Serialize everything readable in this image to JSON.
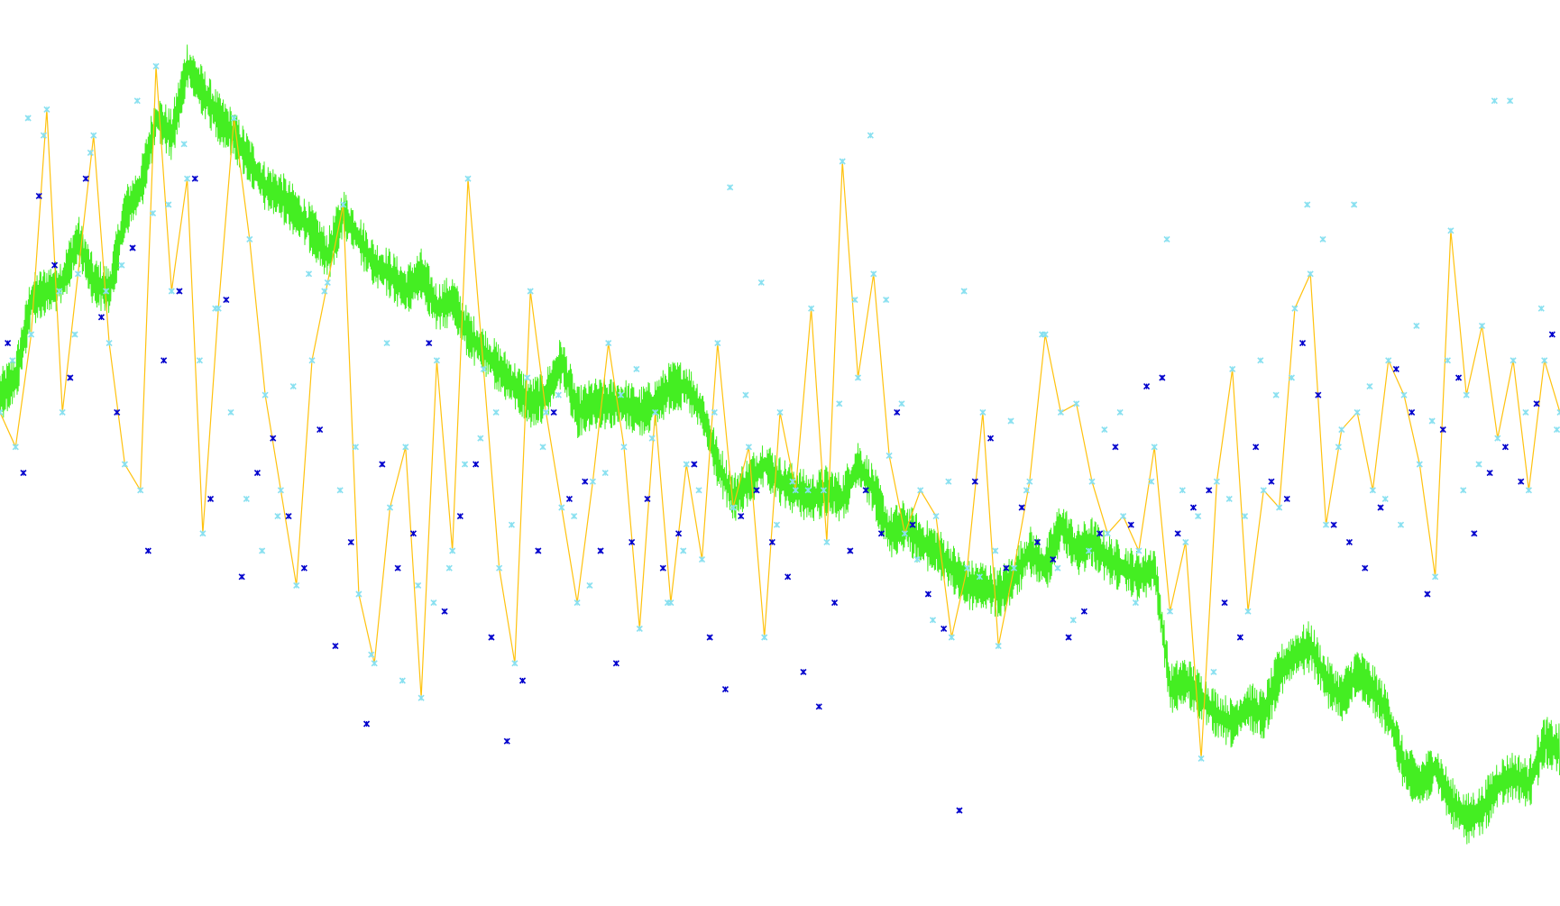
{
  "chart_data": {
    "type": "line",
    "title": "",
    "xlabel": "",
    "ylabel": "",
    "xlim": [
      0,
      1000
    ],
    "ylim": [
      0,
      1000
    ],
    "grid": false,
    "legend": "none",
    "axes_visible": false,
    "colors": {
      "green_series": "#44ee22",
      "yellow_series": "#ffc20e",
      "light_marker": "#88e0f0",
      "dark_marker": "#0000cc"
    },
    "series": [
      {
        "style": "green",
        "marker": "none",
        "x": [
          0,
          10,
          20,
          30,
          40,
          50,
          60,
          70,
          80,
          90,
          100,
          110,
          120,
          130,
          140,
          150,
          160,
          170,
          180,
          190,
          200,
          210,
          220,
          230,
          240,
          250,
          260,
          270,
          280,
          290,
          300,
          310,
          320,
          330,
          340,
          350,
          360,
          370,
          380,
          390,
          400,
          410,
          420,
          430,
          440,
          450,
          460,
          470,
          480,
          490,
          500,
          510,
          520,
          530,
          540,
          550,
          560,
          570,
          580,
          590,
          600,
          610,
          620,
          630,
          640,
          650,
          660,
          670,
          680,
          690,
          700,
          710,
          720,
          730,
          740,
          750,
          760,
          770,
          780,
          790,
          800,
          810,
          820,
          830,
          840,
          850,
          860,
          870,
          880,
          890,
          900,
          910,
          920,
          930,
          940,
          950,
          960,
          970,
          980,
          990,
          1000
        ],
        "values": [
          580,
          600,
          690,
          700,
          710,
          760,
          710,
          700,
          790,
          820,
          900,
          880,
          960,
          930,
          900,
          880,
          850,
          820,
          810,
          790,
          770,
          740,
          790,
          760,
          730,
          720,
          700,
          720,
          680,
          690,
          650,
          630,
          610,
          590,
          570,
          580,
          620,
          560,
          570,
          570,
          570,
          560,
          570,
          590,
          590,
          560,
          500,
          460,
          480,
          500,
          480,
          470,
          460,
          470,
          460,
          500,
          470,
          420,
          430,
          410,
          400,
          380,
          360,
          360,
          350,
          370,
          400,
          380,
          430,
          400,
          410,
          390,
          380,
          370,
          380,
          240,
          250,
          230,
          210,
          200,
          220,
          210,
          260,
          280,
          290,
          250,
          230,
          260,
          240,
          210,
          150,
          130,
          150,
          110,
          90,
          100,
          130,
          140,
          130,
          180,
          170
        ]
      },
      {
        "style": "yellow",
        "marker": "light-x",
        "x": [
          0,
          10,
          20,
          30,
          40,
          50,
          60,
          70,
          80,
          90,
          100,
          110,
          120,
          130,
          140,
          150,
          160,
          170,
          180,
          190,
          200,
          210,
          220,
          230,
          240,
          250,
          260,
          270,
          280,
          290,
          300,
          310,
          320,
          330,
          340,
          350,
          360,
          370,
          380,
          390,
          400,
          410,
          420,
          430,
          440,
          450,
          460,
          470,
          480,
          490,
          500,
          510,
          520,
          530,
          540,
          550,
          560,
          570,
          580,
          590,
          600,
          610,
          620,
          630,
          640,
          650,
          660,
          670,
          680,
          690,
          700,
          710,
          720,
          730,
          740,
          750,
          760,
          770,
          780,
          790,
          800,
          810,
          820,
          830,
          840,
          850,
          860,
          870,
          880,
          890,
          900,
          910,
          920,
          930,
          940,
          950,
          960,
          970,
          980,
          990,
          1000
        ],
        "values": [
          560,
          520,
          650,
          910,
          560,
          720,
          880,
          640,
          500,
          470,
          960,
          700,
          830,
          420,
          680,
          900,
          760,
          580,
          470,
          360,
          620,
          710,
          800,
          350,
          270,
          450,
          520,
          230,
          620,
          400,
          830,
          610,
          380,
          270,
          700,
          560,
          450,
          340,
          480,
          640,
          520,
          310,
          560,
          340,
          500,
          390,
          640,
          450,
          520,
          300,
          560,
          470,
          680,
          410,
          850,
          600,
          720,
          510,
          420,
          470,
          440,
          300,
          380,
          560,
          290,
          380,
          480,
          650,
          560,
          570,
          480,
          420,
          440,
          400,
          520,
          330,
          410,
          160,
          480,
          610,
          330,
          470,
          450,
          680,
          720,
          430,
          540,
          560,
          470,
          620,
          580,
          500,
          370,
          770,
          580,
          660,
          530,
          620,
          470,
          620,
          560
        ]
      },
      {
        "style": "none",
        "marker": "dark-x",
        "x": [
          5,
          15,
          25,
          35,
          45,
          55,
          65,
          75,
          85,
          95,
          105,
          115,
          125,
          135,
          145,
          155,
          165,
          175,
          185,
          195,
          205,
          215,
          225,
          235,
          245,
          255,
          265,
          275,
          285,
          295,
          305,
          315,
          325,
          335,
          345,
          355,
          365,
          375,
          385,
          395,
          405,
          415,
          425,
          435,
          445,
          455,
          465,
          475,
          485,
          495,
          505,
          515,
          525,
          535,
          545,
          555,
          565,
          575,
          585,
          595,
          605,
          615,
          625,
          635,
          645,
          655,
          665,
          675,
          685,
          695,
          705,
          715,
          725,
          735,
          745,
          755,
          765,
          775,
          785,
          795,
          805,
          815,
          825,
          835,
          845,
          855,
          865,
          875,
          885,
          895,
          905,
          915,
          925,
          935,
          945,
          955,
          965,
          975,
          985,
          995
        ],
        "values": [
          640,
          490,
          810,
          730,
          600,
          830,
          670,
          560,
          750,
          400,
          620,
          700,
          830,
          460,
          690,
          370,
          490,
          530,
          440,
          380,
          540,
          290,
          410,
          200,
          500,
          380,
          420,
          640,
          330,
          440,
          500,
          300,
          180,
          250,
          400,
          560,
          460,
          480,
          400,
          270,
          410,
          460,
          380,
          420,
          500,
          300,
          240,
          440,
          470,
          410,
          370,
          260,
          220,
          340,
          400,
          470,
          420,
          560,
          430,
          350,
          310,
          100,
          480,
          530,
          380,
          450,
          410,
          390,
          300,
          330,
          420,
          520,
          430,
          590,
          600,
          420,
          450,
          470,
          340,
          300,
          520,
          480,
          460,
          640,
          580,
          430,
          410,
          380,
          450,
          610,
          560,
          350,
          540,
          600,
          420,
          490,
          520,
          480,
          570,
          650
        ]
      },
      {
        "style": "none",
        "marker": "light-x",
        "x": [
          8,
          18,
          28,
          38,
          48,
          58,
          68,
          78,
          88,
          98,
          108,
          118,
          128,
          138,
          148,
          158,
          168,
          178,
          188,
          198,
          208,
          218,
          228,
          238,
          248,
          258,
          268,
          278,
          288,
          298,
          308,
          318,
          328,
          338,
          348,
          358,
          368,
          378,
          388,
          398,
          408,
          418,
          428,
          438,
          448,
          458,
          468,
          478,
          488,
          498,
          508,
          518,
          528,
          538,
          548,
          558,
          568,
          578,
          588,
          598,
          608,
          618,
          628,
          638,
          648,
          658,
          668,
          678,
          688,
          698,
          708,
          718,
          728,
          738,
          748,
          758,
          768,
          778,
          788,
          798,
          808,
          818,
          828,
          838,
          848,
          858,
          868,
          878,
          888,
          898,
          908,
          918,
          928,
          938,
          948,
          958,
          968,
          978,
          988,
          998
        ],
        "values": [
          620,
          900,
          880,
          700,
          650,
          860,
          700,
          730,
          920,
          790,
          800,
          870,
          620,
          680,
          560,
          460,
          400,
          440,
          590,
          720,
          700,
          470,
          520,
          280,
          640,
          250,
          360,
          340,
          380,
          500,
          530,
          560,
          430,
          600,
          520,
          580,
          440,
          360,
          490,
          580,
          610,
          530,
          340,
          400,
          470,
          560,
          820,
          580,
          710,
          430,
          480,
          470,
          470,
          570,
          690,
          880,
          690,
          570,
          390,
          320,
          480,
          700,
          370,
          400,
          550,
          470,
          650,
          380,
          320,
          400,
          540,
          560,
          340,
          480,
          760,
          470,
          440,
          260,
          460,
          440,
          620,
          580,
          600,
          800,
          760,
          520,
          800,
          590,
          460,
          430,
          660,
          550,
          620,
          470,
          500,
          920,
          920,
          560,
          680,
          540
        ]
      }
    ]
  }
}
